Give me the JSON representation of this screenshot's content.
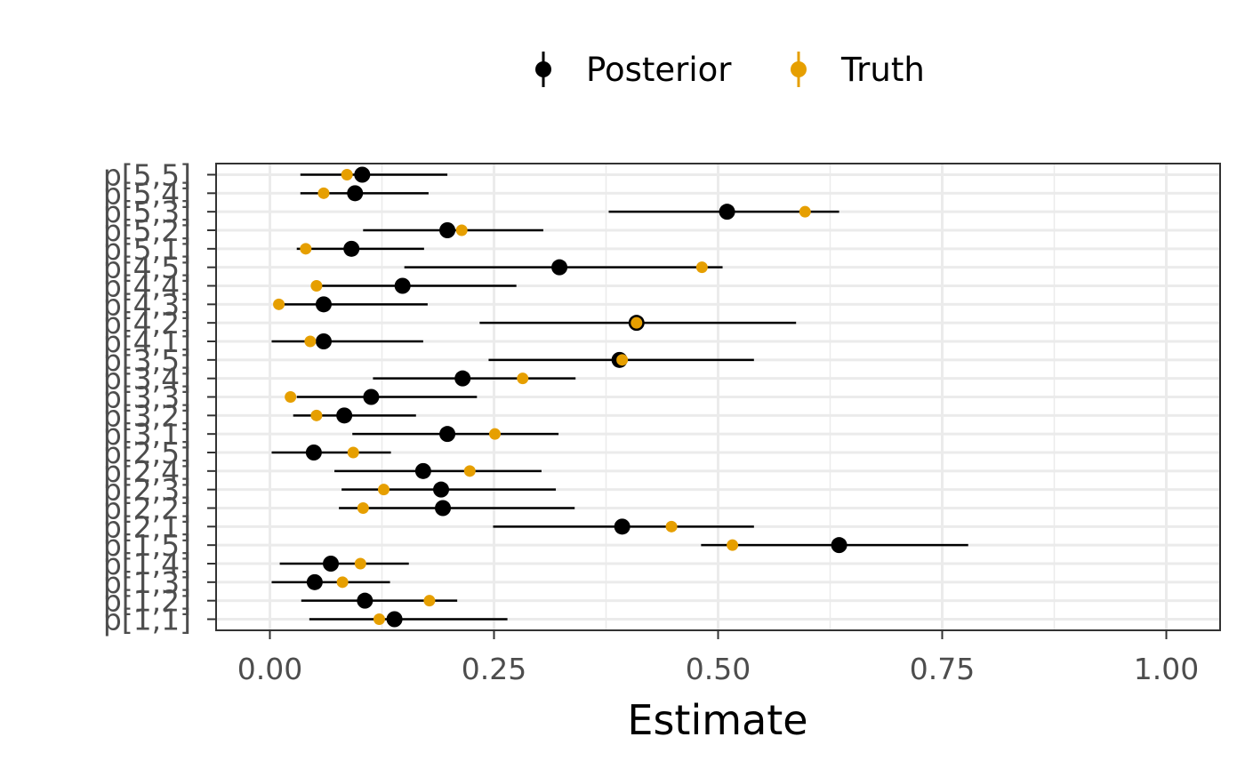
{
  "chart_data": {
    "type": "scatter",
    "subtype": "point-range",
    "title": "",
    "xlabel": "Estimate",
    "ylabel": "",
    "xlim": [
      -0.06,
      1.06
    ],
    "x_ticks": [
      0.0,
      0.25,
      0.5,
      0.75,
      1.0
    ],
    "x_tick_labels": [
      "0.00",
      "0.25",
      "0.50",
      "0.75",
      "1.00"
    ],
    "grid": true,
    "legend_position": "top",
    "legend": [
      {
        "name": "Posterior",
        "color": "#000000"
      },
      {
        "name": "Truth",
        "color": "#E69F00"
      }
    ],
    "categories": [
      "p[1,1]",
      "p[1,2]",
      "p[1,3]",
      "p[1,4]",
      "p[1,5]",
      "p[2,1]",
      "p[2,2]",
      "p[2,3]",
      "p[2,4]",
      "p[2,5]",
      "p[3,1]",
      "p[3,2]",
      "p[3,3]",
      "p[3,4]",
      "p[3,5]",
      "p[4,1]",
      "p[4,2]",
      "p[4,3]",
      "p[4,4]",
      "p[4,5]",
      "p[5,1]",
      "p[5,2]",
      "p[5,3]",
      "p[5,4]",
      "p[5,5]"
    ],
    "series": [
      {
        "name": "Posterior",
        "color": "#000000",
        "values": [
          0.139,
          0.106,
          0.05,
          0.068,
          0.635,
          0.393,
          0.193,
          0.191,
          0.171,
          0.049,
          0.198,
          0.083,
          0.113,
          0.215,
          0.39,
          0.06,
          0.409,
          0.06,
          0.148,
          0.323,
          0.091,
          0.198,
          0.51,
          0.095,
          0.103
        ],
        "lower": [
          0.044,
          0.035,
          0.002,
          0.011,
          0.481,
          0.249,
          0.077,
          0.08,
          0.072,
          0.002,
          0.092,
          0.026,
          0.03,
          0.115,
          0.244,
          0.002,
          0.234,
          0.004,
          0.058,
          0.15,
          0.03,
          0.104,
          0.378,
          0.034,
          0.034
        ],
        "upper": [
          0.265,
          0.209,
          0.134,
          0.155,
          0.779,
          0.54,
          0.34,
          0.319,
          0.303,
          0.135,
          0.322,
          0.163,
          0.231,
          0.341,
          0.54,
          0.171,
          0.587,
          0.176,
          0.275,
          0.505,
          0.172,
          0.305,
          0.635,
          0.177,
          0.198
        ]
      },
      {
        "name": "Truth",
        "color": "#E69F00",
        "values": [
          0.122,
          0.178,
          0.081,
          0.101,
          0.516,
          0.448,
          0.104,
          0.127,
          0.223,
          0.093,
          0.251,
          0.052,
          0.023,
          0.282,
          0.393,
          0.045,
          0.409,
          0.01,
          0.052,
          0.482,
          0.04,
          0.214,
          0.597,
          0.06,
          0.086
        ]
      }
    ]
  }
}
